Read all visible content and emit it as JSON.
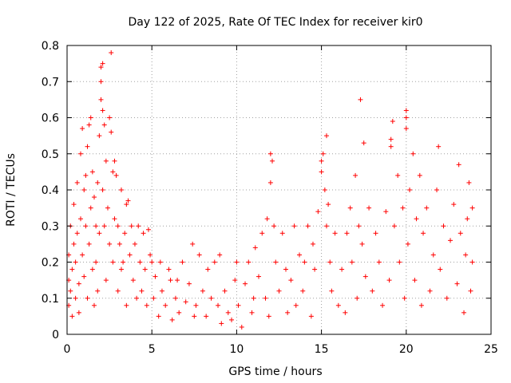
{
  "chart_data": {
    "type": "scatter",
    "title": "Day 122 of 2025, Rate Of TEC Index for receiver kir0",
    "xlabel": "GPS time / hours",
    "ylabel": "ROTI / TECUs",
    "xlim": [
      0,
      25
    ],
    "ylim": [
      0,
      0.8
    ],
    "xticks": [
      0,
      5,
      10,
      15,
      20,
      25
    ],
    "yticks": [
      0,
      0.1,
      0.2,
      0.3,
      0.4,
      0.5,
      0.6,
      0.7,
      0.8
    ],
    "xtick_labels": [
      "0",
      "5",
      "10",
      "15",
      "20",
      "25"
    ],
    "ytick_labels": [
      "0",
      "0.1",
      "0.2",
      "0.3",
      "0.4",
      "0.5",
      "0.6",
      "0.7",
      "0.8"
    ],
    "grid": true,
    "marker": "+",
    "color": "#ff0000",
    "series": [
      {
        "name": "ROTI",
        "points": [
          [
            0.1,
            0.08
          ],
          [
            0.1,
            0.15
          ],
          [
            0.1,
            0.22
          ],
          [
            0.2,
            0.3
          ],
          [
            0.2,
            0.12
          ],
          [
            0.3,
            0.18
          ],
          [
            0.3,
            0.05
          ],
          [
            0.4,
            0.25
          ],
          [
            0.4,
            0.36
          ],
          [
            0.5,
            0.1
          ],
          [
            0.5,
            0.2
          ],
          [
            0.6,
            0.28
          ],
          [
            0.6,
            0.42
          ],
          [
            0.7,
            0.14
          ],
          [
            0.7,
            0.06
          ],
          [
            0.8,
            0.32
          ],
          [
            0.8,
            0.5
          ],
          [
            0.9,
            0.57
          ],
          [
            0.9,
            0.22
          ],
          [
            1.0,
            0.4
          ],
          [
            1.0,
            0.16
          ],
          [
            1.1,
            0.44
          ],
          [
            1.1,
            0.3
          ],
          [
            1.2,
            0.52
          ],
          [
            1.2,
            0.1
          ],
          [
            1.3,
            0.58
          ],
          [
            1.3,
            0.25
          ],
          [
            1.4,
            0.6
          ],
          [
            1.4,
            0.35
          ],
          [
            1.5,
            0.45
          ],
          [
            1.5,
            0.18
          ],
          [
            1.6,
            0.38
          ],
          [
            1.6,
            0.08
          ],
          [
            1.7,
            0.3
          ],
          [
            1.7,
            0.2
          ],
          [
            1.8,
            0.42
          ],
          [
            1.8,
            0.12
          ],
          [
            1.9,
            0.55
          ],
          [
            1.9,
            0.28
          ],
          [
            2.0,
            0.65
          ],
          [
            2.0,
            0.74
          ],
          [
            2.0,
            0.7
          ],
          [
            2.1,
            0.75
          ],
          [
            2.1,
            0.62
          ],
          [
            2.1,
            0.4
          ],
          [
            2.2,
            0.58
          ],
          [
            2.2,
            0.3
          ],
          [
            2.3,
            0.48
          ],
          [
            2.3,
            0.15
          ],
          [
            2.4,
            0.35
          ],
          [
            2.5,
            0.6
          ],
          [
            2.5,
            0.25
          ],
          [
            2.6,
            0.78
          ],
          [
            2.6,
            0.56
          ],
          [
            2.7,
            0.45
          ],
          [
            2.7,
            0.2
          ],
          [
            2.8,
            0.48
          ],
          [
            2.8,
            0.32
          ],
          [
            2.9,
            0.44
          ],
          [
            3.0,
            0.3
          ],
          [
            3.0,
            0.12
          ],
          [
            3.1,
            0.25
          ],
          [
            3.2,
            0.4
          ],
          [
            3.2,
            0.18
          ],
          [
            3.3,
            0.2
          ],
          [
            3.4,
            0.28
          ],
          [
            3.5,
            0.36
          ],
          [
            3.5,
            0.08
          ],
          [
            3.6,
            0.37
          ],
          [
            3.7,
            0.22
          ],
          [
            3.8,
            0.3
          ],
          [
            3.9,
            0.15
          ],
          [
            4.0,
            0.25
          ],
          [
            4.1,
            0.1
          ],
          [
            4.2,
            0.3
          ],
          [
            4.3,
            0.2
          ],
          [
            4.4,
            0.12
          ],
          [
            4.5,
            0.28
          ],
          [
            4.6,
            0.18
          ],
          [
            4.7,
            0.08
          ],
          [
            4.8,
            0.29
          ],
          [
            4.9,
            0.22
          ],
          [
            5.0,
            0.2
          ],
          [
            5.1,
            0.1
          ],
          [
            5.2,
            0.16
          ],
          [
            5.4,
            0.05
          ],
          [
            5.5,
            0.2
          ],
          [
            5.6,
            0.12
          ],
          [
            5.8,
            0.08
          ],
          [
            6.0,
            0.18
          ],
          [
            6.1,
            0.15
          ],
          [
            6.2,
            0.04
          ],
          [
            6.4,
            0.1
          ],
          [
            6.5,
            0.15
          ],
          [
            6.6,
            0.06
          ],
          [
            6.8,
            0.2
          ],
          [
            7.0,
            0.09
          ],
          [
            7.2,
            0.14
          ],
          [
            7.4,
            0.25
          ],
          [
            7.5,
            0.05
          ],
          [
            7.6,
            0.08
          ],
          [
            7.8,
            0.22
          ],
          [
            8.0,
            0.12
          ],
          [
            8.2,
            0.05
          ],
          [
            8.3,
            0.18
          ],
          [
            8.5,
            0.1
          ],
          [
            8.7,
            0.2
          ],
          [
            8.9,
            0.08
          ],
          [
            9.0,
            0.22
          ],
          [
            9.1,
            0.03
          ],
          [
            9.3,
            0.12
          ],
          [
            9.5,
            0.06
          ],
          [
            9.7,
            0.04
          ],
          [
            9.9,
            0.15
          ],
          [
            10.0,
            0.2
          ],
          [
            10.1,
            0.08
          ],
          [
            10.3,
            0.02
          ],
          [
            10.5,
            0.14
          ],
          [
            10.7,
            0.2
          ],
          [
            10.9,
            0.06
          ],
          [
            11.0,
            0.1
          ],
          [
            11.1,
            0.24
          ],
          [
            11.3,
            0.16
          ],
          [
            11.5,
            0.28
          ],
          [
            11.7,
            0.1
          ],
          [
            11.8,
            0.32
          ],
          [
            11.9,
            0.05
          ],
          [
            12.0,
            0.5
          ],
          [
            12.0,
            0.42
          ],
          [
            12.1,
            0.48
          ],
          [
            12.2,
            0.3
          ],
          [
            12.3,
            0.2
          ],
          [
            12.5,
            0.12
          ],
          [
            12.7,
            0.28
          ],
          [
            12.9,
            0.18
          ],
          [
            13.0,
            0.06
          ],
          [
            13.2,
            0.15
          ],
          [
            13.4,
            0.3
          ],
          [
            13.5,
            0.08
          ],
          [
            13.7,
            0.22
          ],
          [
            13.9,
            0.12
          ],
          [
            14.0,
            0.2
          ],
          [
            14.2,
            0.3
          ],
          [
            14.4,
            0.05
          ],
          [
            14.5,
            0.25
          ],
          [
            14.6,
            0.18
          ],
          [
            14.8,
            0.34
          ],
          [
            15.0,
            0.45
          ],
          [
            15.0,
            0.48
          ],
          [
            15.1,
            0.5
          ],
          [
            15.2,
            0.4
          ],
          [
            15.3,
            0.55
          ],
          [
            15.3,
            0.3
          ],
          [
            15.4,
            0.36
          ],
          [
            15.5,
            0.2
          ],
          [
            15.6,
            0.12
          ],
          [
            15.8,
            0.28
          ],
          [
            16.0,
            0.08
          ],
          [
            16.2,
            0.18
          ],
          [
            16.4,
            0.06
          ],
          [
            16.5,
            0.28
          ],
          [
            16.7,
            0.35
          ],
          [
            16.8,
            0.2
          ],
          [
            17.0,
            0.44
          ],
          [
            17.1,
            0.1
          ],
          [
            17.2,
            0.3
          ],
          [
            17.3,
            0.65
          ],
          [
            17.4,
            0.25
          ],
          [
            17.5,
            0.53
          ],
          [
            17.6,
            0.16
          ],
          [
            17.8,
            0.35
          ],
          [
            18.0,
            0.12
          ],
          [
            18.2,
            0.28
          ],
          [
            18.4,
            0.2
          ],
          [
            18.6,
            0.08
          ],
          [
            18.8,
            0.34
          ],
          [
            19.0,
            0.15
          ],
          [
            19.1,
            0.52
          ],
          [
            19.1,
            0.54
          ],
          [
            19.2,
            0.59
          ],
          [
            19.3,
            0.3
          ],
          [
            19.5,
            0.44
          ],
          [
            19.6,
            0.2
          ],
          [
            19.8,
            0.35
          ],
          [
            19.9,
            0.1
          ],
          [
            20.0,
            0.6
          ],
          [
            20.0,
            0.57
          ],
          [
            20.0,
            0.62
          ],
          [
            20.1,
            0.25
          ],
          [
            20.2,
            0.4
          ],
          [
            20.4,
            0.5
          ],
          [
            20.5,
            0.15
          ],
          [
            20.6,
            0.32
          ],
          [
            20.8,
            0.44
          ],
          [
            20.9,
            0.08
          ],
          [
            21.0,
            0.28
          ],
          [
            21.2,
            0.35
          ],
          [
            21.4,
            0.12
          ],
          [
            21.6,
            0.22
          ],
          [
            21.8,
            0.4
          ],
          [
            21.9,
            0.52
          ],
          [
            22.0,
            0.18
          ],
          [
            22.2,
            0.3
          ],
          [
            22.4,
            0.1
          ],
          [
            22.6,
            0.26
          ],
          [
            22.8,
            0.36
          ],
          [
            23.0,
            0.14
          ],
          [
            23.1,
            0.47
          ],
          [
            23.2,
            0.28
          ],
          [
            23.4,
            0.06
          ],
          [
            23.5,
            0.22
          ],
          [
            23.6,
            0.32
          ],
          [
            23.7,
            0.42
          ],
          [
            23.8,
            0.12
          ],
          [
            23.9,
            0.35
          ],
          [
            23.9,
            0.2
          ]
        ]
      }
    ]
  }
}
